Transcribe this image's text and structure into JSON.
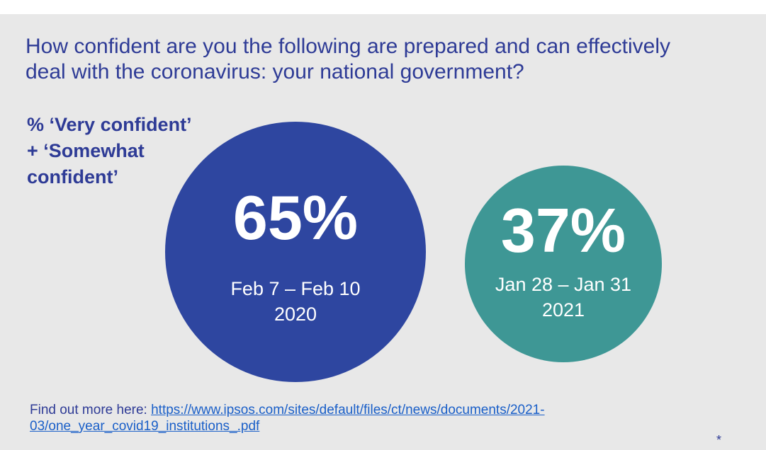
{
  "title_lines": [
    "How confident are you the following are prepared and can effectively",
    "deal with the coronavirus: your national government?"
  ],
  "measure_lines": [
    "% ‘Very confident’",
    "+ ‘Somewhat",
    "confident’"
  ],
  "colors": {
    "primary_blue": "#2e46a0",
    "teal": "#3e9795",
    "text_blue": "#2e3b96",
    "link_blue": "#1a5fc8",
    "background": "#e8e8e8"
  },
  "chart_data": {
    "type": "bubble",
    "title": "How confident are you the following are prepared and can effectively deal with the coronavirus: your national government?",
    "measure": "% ‘Very confident’ + ‘Somewhat confident’",
    "bubbles": [
      {
        "value": 65,
        "label": "65%",
        "period_lines": [
          "Feb 7 – Feb 10",
          "2020"
        ],
        "color": "#2e46a0"
      },
      {
        "value": 37,
        "label": "37%",
        "period_lines": [
          "Jan 28 – Jan 31",
          "2021"
        ],
        "color": "#3e9795"
      }
    ]
  },
  "footer": {
    "prefix": "Find out more here: ",
    "link_lines": [
      "https://www.ipsos.com/sites/default/files/ct/news/documents/2021-",
      "03/one_year_covid19_institutions_.pdf"
    ]
  },
  "asterisk": "*"
}
